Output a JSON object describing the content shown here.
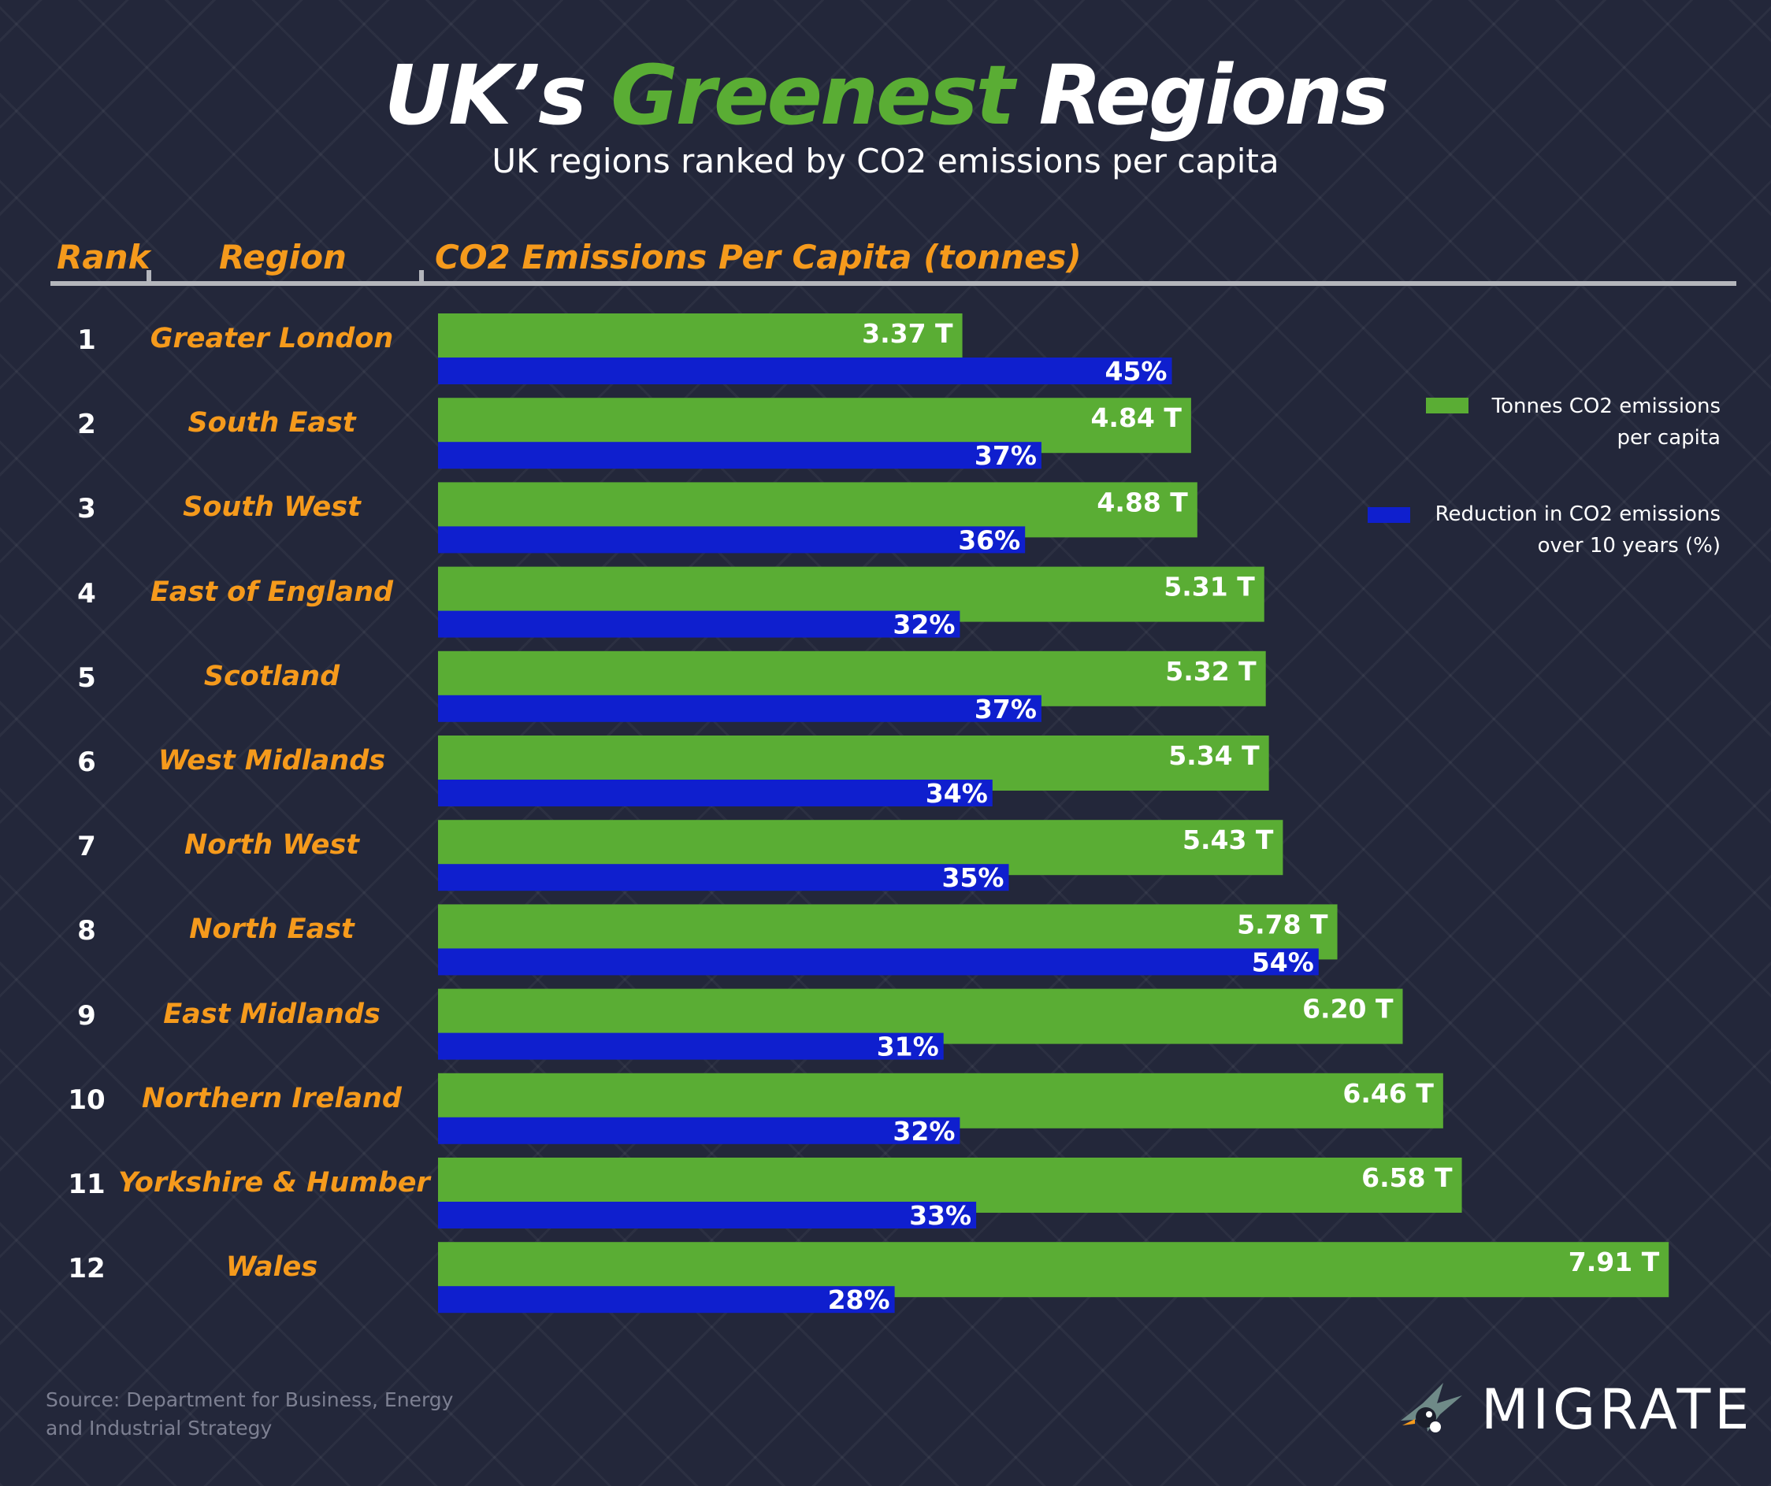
{
  "header": {
    "title_part1": "UK’s",
    "title_part2": "Greenest",
    "title_part3": "Regions",
    "subtitle": "UK regions ranked by CO2 emissions per capita"
  },
  "columns": {
    "rank": "Rank",
    "region": "Region",
    "emissions": "CO2 Emissions Per Capita (tonnes)"
  },
  "legend": {
    "tonnes": "Tonnes CO2 emissions per capita",
    "reduction": "Reduction in CO2 emissions over 10 years (%)"
  },
  "colors": {
    "green": "#5aad34",
    "blue": "#0f1fce",
    "orange": "#f59a1c",
    "background": "#23273a"
  },
  "footer": {
    "source": "Source: Department for Business, Energy and Industrial Strategy",
    "logo_text": "MIGRATE",
    "logo_icon": "bird-icon"
  },
  "chart_data": {
    "type": "bar",
    "orientation": "horizontal",
    "categories": [
      "Greater London",
      "South East",
      "South West",
      "East of England",
      "Scotland",
      "West Midlands",
      "North West",
      "North East",
      "East Midlands",
      "Northern Ireland",
      "Yorkshire & Humber",
      "Wales"
    ],
    "ranks": [
      "1",
      "2",
      "3",
      "4",
      "5",
      "6",
      "7",
      "8",
      "9",
      "10",
      "11",
      "12"
    ],
    "series": [
      {
        "name": "Tonnes CO2 emissions per capita",
        "values": [
          3.37,
          4.84,
          4.88,
          5.31,
          5.32,
          5.34,
          5.43,
          5.78,
          6.2,
          6.46,
          6.58,
          7.91
        ],
        "labels": [
          "3.37 T",
          "4.84 T",
          "4.88 T",
          "5.31 T",
          "5.32 T",
          "5.34 T",
          "5.43 T",
          "5.78 T",
          "6.20 T",
          "6.46 T",
          "6.58 T",
          "7.91 T"
        ]
      },
      {
        "name": "Reduction in CO2 emissions over 10 years (%)",
        "values": [
          45,
          37,
          36,
          32,
          37,
          34,
          35,
          54,
          31,
          32,
          33,
          28
        ],
        "labels": [
          "45%",
          "37%",
          "36%",
          "32%",
          "37%",
          "34%",
          "35%",
          "54%",
          "31%",
          "32%",
          "33%",
          "28%"
        ]
      }
    ],
    "title": "UK’s Greenest Regions",
    "legend_position": "right",
    "grid": false
  }
}
